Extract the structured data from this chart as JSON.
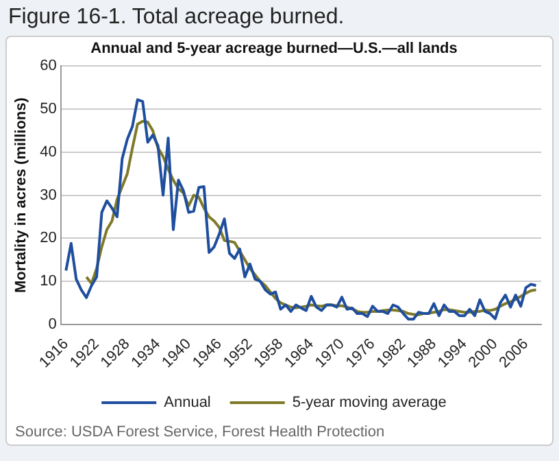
{
  "chart_data": {
    "type": "line",
    "title": "Figure 16-1. Total acreage burned.",
    "subtitle": "Annual and 5-year acreage burned—U.S.—all lands",
    "ylabel": "Mortality in acres (millions)",
    "x": [
      1916,
      1917,
      1918,
      1919,
      1920,
      1921,
      1922,
      1923,
      1924,
      1925,
      1926,
      1927,
      1928,
      1929,
      1930,
      1931,
      1932,
      1933,
      1934,
      1935,
      1936,
      1937,
      1938,
      1939,
      1940,
      1941,
      1942,
      1943,
      1944,
      1945,
      1946,
      1947,
      1948,
      1949,
      1950,
      1951,
      1952,
      1953,
      1954,
      1955,
      1956,
      1957,
      1958,
      1959,
      1960,
      1961,
      1962,
      1963,
      1964,
      1965,
      1966,
      1967,
      1968,
      1969,
      1970,
      1971,
      1972,
      1973,
      1974,
      1975,
      1976,
      1977,
      1978,
      1979,
      1980,
      1981,
      1982,
      1983,
      1984,
      1985,
      1986,
      1987,
      1988,
      1989,
      1990,
      1991,
      1992,
      1993,
      1994,
      1995,
      1996,
      1997,
      1998,
      1999,
      2000,
      2001,
      2002,
      2003,
      2004,
      2005,
      2006,
      2007,
      2008
    ],
    "series": [
      {
        "name": "Annual",
        "color": "#1f4e9e",
        "values": [
          12.5,
          18.8,
          10.5,
          8,
          6.2,
          9,
          11,
          26,
          28.7,
          27,
          25,
          38.5,
          43,
          46,
          52.2,
          51.8,
          42.3,
          44,
          41.5,
          30,
          43.3,
          22,
          33.5,
          31,
          26,
          26.3,
          31.8,
          32,
          16.7,
          18,
          21,
          24.5,
          16.5,
          15.3,
          17.5,
          11,
          14,
          10.5,
          10,
          8,
          7,
          7.5,
          3.5,
          4.5,
          3,
          4.5,
          3.8,
          3.2,
          6.5,
          4,
          3.2,
          4.5,
          4.5,
          4,
          6.3,
          3.5,
          3.8,
          2.5,
          2.5,
          1.8,
          4.2,
          3,
          3,
          2.5,
          4.5,
          4,
          2.5,
          1.2,
          1.2,
          2.8,
          2.5,
          2.5,
          4.8,
          2,
          4.5,
          3,
          3,
          2,
          2,
          3.5,
          2,
          5.7,
          3,
          2.5,
          1.3,
          5,
          6.8,
          4,
          6.8,
          4.2,
          8.5,
          9.3,
          9
        ]
      },
      {
        "name": "5-year moving average",
        "color": "#7f7a2a",
        "values": [
          null,
          null,
          null,
          null,
          11,
          9.5,
          13,
          18,
          22,
          24,
          29,
          32,
          35,
          41,
          46.5,
          47.2,
          47,
          45,
          41,
          39,
          36,
          33.5,
          31.5,
          30.5,
          27.5,
          30,
          29.5,
          27,
          25,
          24,
          22.5,
          19.5,
          19.3,
          19,
          17,
          15,
          13,
          11.5,
          10,
          9,
          7.5,
          6,
          5,
          4.5,
          4,
          3.8,
          4,
          4.2,
          4.5,
          4.3,
          4.2,
          4.5,
          4.5,
          4.3,
          4.3,
          4,
          3.6,
          3,
          2.8,
          2.8,
          3,
          3,
          3.2,
          3.3,
          3.3,
          3.2,
          3,
          2.5,
          2.3,
          2.2,
          2.5,
          2.6,
          2.8,
          3,
          3.4,
          3.4,
          3.2,
          3,
          2.8,
          2.8,
          3,
          3,
          3.3,
          3.2,
          3.5,
          4.2,
          4.8,
          5.2,
          5.8,
          6.5,
          7.2,
          7.8,
          8
        ]
      }
    ],
    "xlim": [
      1915,
      2009
    ],
    "xticks": [
      1916,
      1922,
      1928,
      1934,
      1940,
      1946,
      1952,
      1958,
      1964,
      1970,
      1976,
      1982,
      1988,
      1994,
      2000,
      2006
    ],
    "ylim": [
      0,
      60
    ],
    "yticks": [
      0,
      10,
      20,
      30,
      40,
      50,
      60
    ],
    "grid": "y",
    "legend": "bottom",
    "marker": "none",
    "line_style": "solid",
    "annotations": [
      "Source: USDA Forest Service, Forest Health Protection"
    ]
  }
}
